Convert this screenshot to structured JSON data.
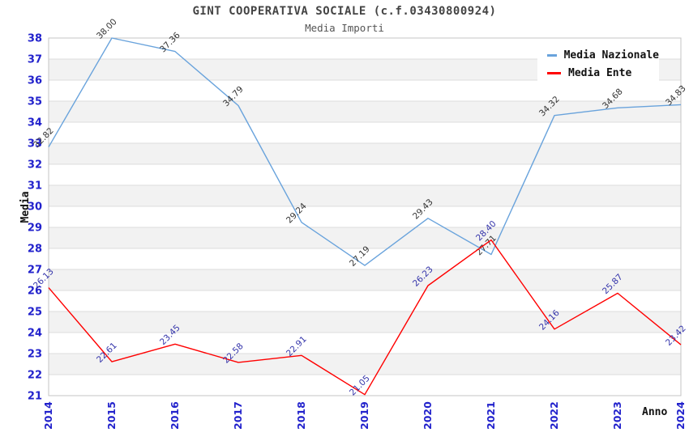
{
  "title": "GINT COOPERATIVA SOCIALE (c.f.03430800924)",
  "subtitle": "Media Importi",
  "legend": {
    "items": [
      {
        "label": "Media Nazionale",
        "color": "#69A3DC"
      },
      {
        "label": "Media Ente",
        "color": "#FF0000"
      }
    ]
  },
  "axes": {
    "y_title": "Media",
    "x_title": "Anno",
    "y_ticks": [
      21,
      22,
      23,
      24,
      25,
      26,
      27,
      28,
      29,
      30,
      31,
      32,
      33,
      34,
      35,
      36,
      37,
      38
    ],
    "x_ticks": [
      "2014",
      "2015",
      "2016",
      "2017",
      "2018",
      "2019",
      "2020",
      "2021",
      "2022",
      "2023",
      "2024"
    ]
  },
  "chart_data": {
    "type": "line",
    "title": "GINT COOPERATIVA SOCIALE (c.f.03430800924)",
    "subtitle": "Media Importi",
    "xlabel": "Anno",
    "ylabel": "Media",
    "x": [
      2014,
      2015,
      2016,
      2017,
      2018,
      2019,
      2020,
      2021,
      2022,
      2023,
      2024
    ],
    "series": [
      {
        "name": "Media Nazionale",
        "color": "#69A3DC",
        "label_color": "#333333",
        "values": [
          32.82,
          38.0,
          37.36,
          34.79,
          29.24,
          27.19,
          29.43,
          27.71,
          34.32,
          34.68,
          34.83
        ]
      },
      {
        "name": "Media Ente",
        "color": "#FF0000",
        "label_color": "#3333AA",
        "values": [
          26.13,
          22.61,
          23.45,
          22.58,
          22.91,
          21.05,
          26.23,
          28.4,
          24.16,
          25.87,
          23.42
        ]
      }
    ],
    "ylim": [
      21,
      38
    ],
    "ytick_step": 1,
    "grid": true,
    "band_colors": [
      "#FFFFFF",
      "#F2F2F2"
    ],
    "gridline_color": "#DCDCDC",
    "border_color": "#C4C4C4",
    "tick_color": "#2222CC",
    "legend_position": "top-right",
    "value_labels": "rotated-45"
  }
}
